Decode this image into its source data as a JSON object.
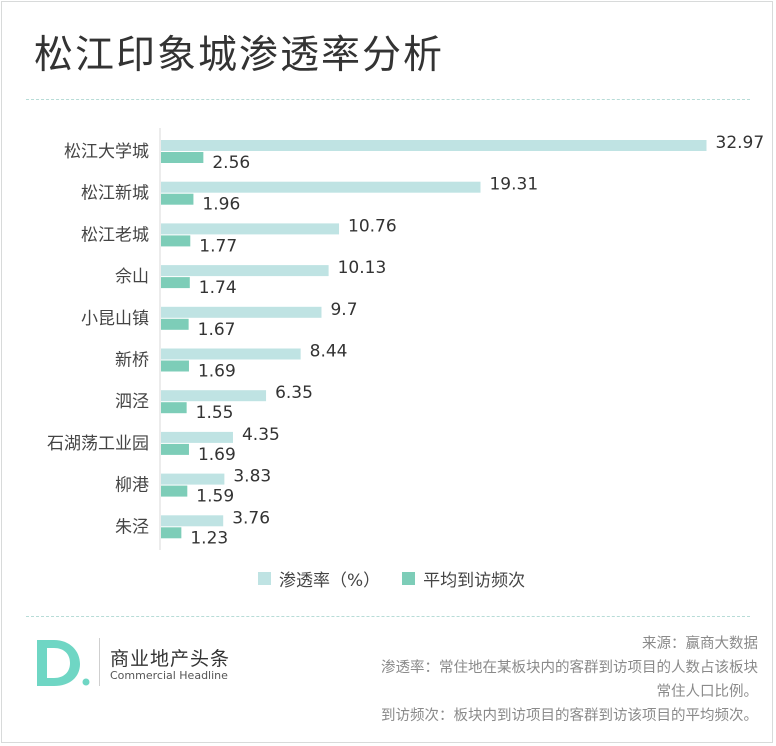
{
  "title": "松江印象城渗透率分析",
  "colors": {
    "penetration": "#bfe3e3",
    "visits": "#7dcdb8",
    "divider": "#b7dcd7",
    "logo": "#6fd6c4"
  },
  "legend": {
    "penetration": "渗透率（%）",
    "visits": "平均到访频次"
  },
  "chart_data": {
    "type": "bar",
    "orientation": "horizontal",
    "categories": [
      "松江大学城",
      "松江新城",
      "松江老城",
      "佘山",
      "小昆山镇",
      "新桥",
      "泗泾",
      "石湖荡工业园",
      "柳港",
      "朱泾"
    ],
    "series": [
      {
        "name": "渗透率（%）",
        "values": [
          32.97,
          19.31,
          10.76,
          10.13,
          9.7,
          8.44,
          6.35,
          4.35,
          3.83,
          3.76
        ],
        "labels": [
          "32.97",
          "19.31",
          "10.76",
          "10.13",
          "9.7",
          "8.44",
          "6.35",
          "4.35",
          "3.83",
          "3.76"
        ]
      },
      {
        "name": "平均到访频次",
        "values": [
          2.56,
          1.96,
          1.77,
          1.74,
          1.67,
          1.69,
          1.55,
          1.69,
          1.59,
          1.23
        ],
        "labels": [
          "2.56",
          "1.96",
          "1.77",
          "1.74",
          "1.67",
          "1.69",
          "1.55",
          "1.69",
          "1.59",
          "1.23"
        ]
      }
    ],
    "xlim": [
      0,
      33
    ],
    "grid": false,
    "legend_position": "bottom"
  },
  "brand": {
    "name_cn": "商业地产头条",
    "name_en": "Commercial Headline"
  },
  "notes": {
    "source": "来源：赢商大数据",
    "penetration_def_1": "渗透率：常住地在某板块内的客群到访项目的人数占该板块",
    "penetration_def_2": "常住人口比例。",
    "visits_def": "到访频次：板块内到访项目的客群到访该项目的平均频次。"
  }
}
